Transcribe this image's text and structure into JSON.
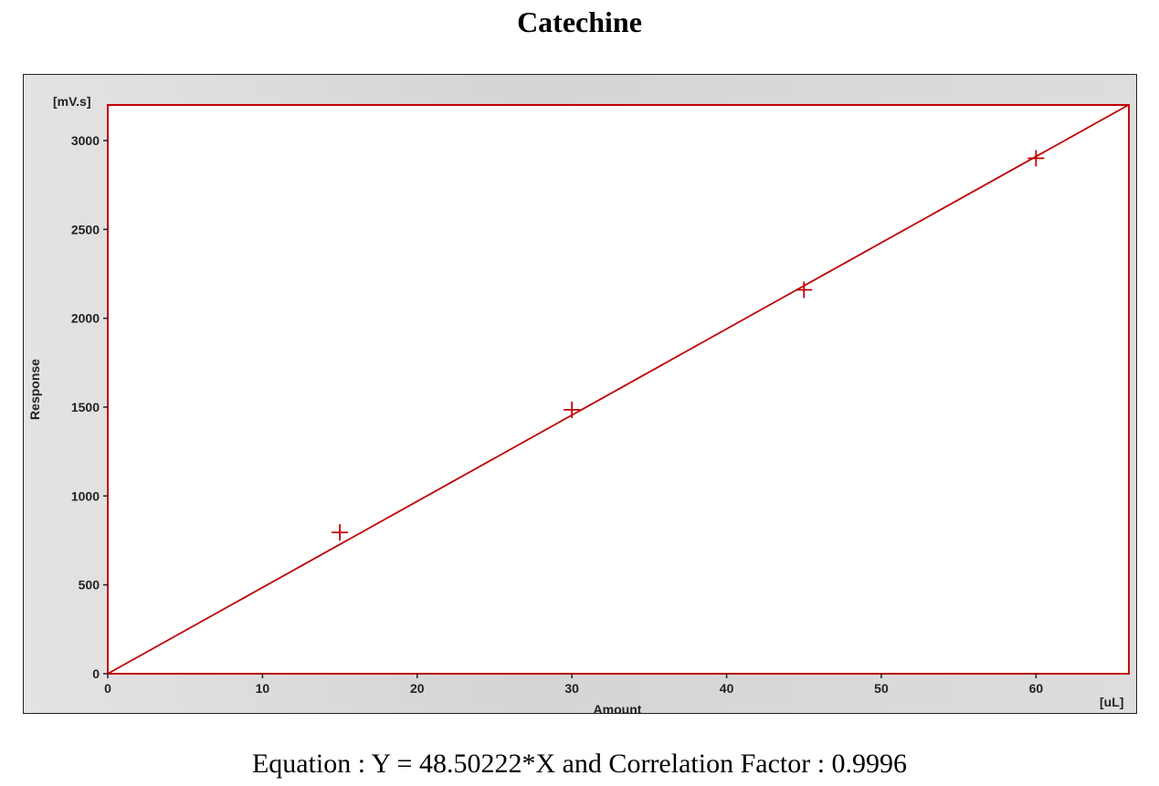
{
  "title": "Catechine",
  "equation_text": "Equation : Y = 48.50222*X and Correlation Factor : 0.9996",
  "chart_data": {
    "type": "scatter",
    "title": "Catechine",
    "xlabel": "Amount",
    "ylabel": "Response",
    "x_unit": "[uL]",
    "y_unit": "[mV.s]",
    "xlim": [
      0,
      66
    ],
    "ylim": [
      0,
      3200
    ],
    "x_ticks": [
      0,
      10,
      20,
      30,
      40,
      50,
      60
    ],
    "y_ticks": [
      0,
      500,
      1000,
      1500,
      2000,
      2500,
      3000
    ],
    "series": [
      {
        "marker": "plus",
        "points": [
          {
            "x": 15,
            "y": 795
          },
          {
            "x": 30,
            "y": 1485
          },
          {
            "x": 45,
            "y": 2160
          },
          {
            "x": 60,
            "y": 2900
          }
        ]
      }
    ],
    "fit": {
      "slope": 48.50222,
      "intercept": 0,
      "r": 0.9996
    },
    "color": "#c00000",
    "grid": false
  }
}
